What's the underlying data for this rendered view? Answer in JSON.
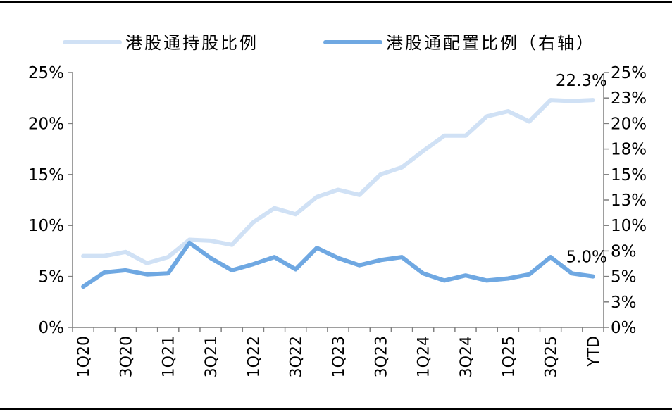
{
  "chart_data": {
    "type": "line",
    "categories": [
      "1Q20",
      "2Q20",
      "3Q20",
      "4Q20",
      "1Q21",
      "2Q21",
      "3Q21",
      "4Q21",
      "1Q22",
      "2Q22",
      "3Q22",
      "4Q22",
      "1Q23",
      "2Q23",
      "3Q23",
      "4Q23",
      "1Q24",
      "2Q24",
      "3Q24",
      "4Q24",
      "1Q25",
      "2Q25",
      "3Q25",
      "4Q25",
      "YTD"
    ],
    "x_tick_labels": [
      "1Q20",
      "",
      "3Q20",
      "",
      "1Q21",
      "",
      "3Q21",
      "",
      "1Q22",
      "",
      "3Q22",
      "",
      "1Q23",
      "",
      "3Q23",
      "",
      "1Q24",
      "",
      "3Q24",
      "",
      "1Q25",
      "",
      "3Q25",
      "",
      "YTD"
    ],
    "series": [
      {
        "name": "港股通持股比例",
        "axis": "left",
        "color": "#d0e1f5",
        "values": [
          7.0,
          7.0,
          7.4,
          6.3,
          6.9,
          8.6,
          8.5,
          8.1,
          10.3,
          11.7,
          11.1,
          12.8,
          13.5,
          13.0,
          15.0,
          15.7,
          17.3,
          18.8,
          18.8,
          20.7,
          21.2,
          20.2,
          22.3,
          22.2,
          22.3
        ]
      },
      {
        "name": "港股通配置比例（右轴）",
        "axis": "right",
        "color": "#6fa8e2",
        "values": [
          4.0,
          5.4,
          5.6,
          5.2,
          5.3,
          8.3,
          6.8,
          5.6,
          6.2,
          6.9,
          5.7,
          7.8,
          6.8,
          6.1,
          6.6,
          6.9,
          5.3,
          4.6,
          5.1,
          4.6,
          4.8,
          5.2,
          6.9,
          5.3,
          5.0
        ]
      }
    ],
    "y_left": {
      "ylim": [
        0,
        25
      ],
      "ticks": [
        "0%",
        "5%",
        "10%",
        "15%",
        "20%",
        "25%"
      ],
      "tick_values": [
        0,
        5,
        10,
        15,
        20,
        25
      ]
    },
    "y_right": {
      "ylim": [
        0,
        25
      ],
      "ticks": [
        "0%",
        "3%",
        "5%",
        "8%",
        "10%",
        "13%",
        "15%",
        "18%",
        "20%",
        "23%",
        "25%"
      ],
      "tick_values": [
        0,
        2.5,
        5,
        7.5,
        10,
        12.5,
        15,
        17.5,
        20,
        22.5,
        25
      ]
    },
    "annotations": [
      {
        "text": "22.3%",
        "series": 0,
        "index": 24
      },
      {
        "text": "5.0%",
        "series": 1,
        "index": 24
      }
    ],
    "legend_position": "top",
    "grid": false
  }
}
